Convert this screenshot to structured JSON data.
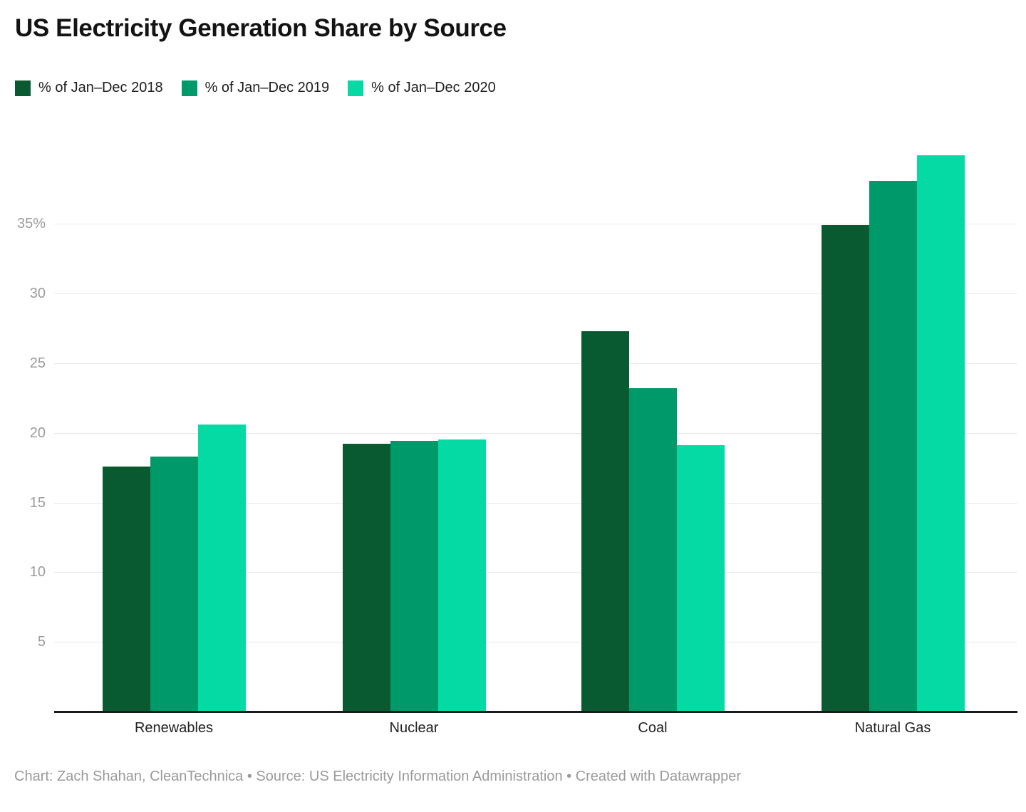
{
  "title": "US Electricity Generation Share by Source",
  "legend": [
    {
      "label": "% of Jan–Dec 2018",
      "color": "#095a31"
    },
    {
      "label": "% of Jan–Dec 2019",
      "color": "#009a6a"
    },
    {
      "label": "% of Jan–Dec 2020",
      "color": "#05daa5"
    }
  ],
  "footer": "Chart: Zach Shahan, CleanTechnica • Source: US Electricity Information Administration • Created with Datawrapper",
  "chart_data": {
    "type": "bar",
    "title": "US Electricity Generation Share by Source",
    "categories": [
      "Renewables",
      "Nuclear",
      "Coal",
      "Natural Gas"
    ],
    "series": [
      {
        "name": "% of Jan–Dec 2018",
        "color": "#095a31",
        "values": [
          17.6,
          19.2,
          27.3,
          34.9
        ]
      },
      {
        "name": "% of Jan–Dec 2019",
        "color": "#009a6a",
        "values": [
          18.3,
          19.4,
          23.2,
          38.1
        ]
      },
      {
        "name": "% of Jan–Dec 2020",
        "color": "#05daa5",
        "values": [
          20.6,
          19.5,
          19.1,
          39.9
        ]
      }
    ],
    "xlabel": "",
    "ylabel": "",
    "unit": "%",
    "ylim": [
      0,
      41
    ],
    "y_ticks": [
      5,
      10,
      15,
      20,
      25,
      30,
      35
    ],
    "y_tick_labels": [
      "5",
      "10",
      "15",
      "20",
      "25",
      "30",
      "35%"
    ],
    "grid": "horizontal",
    "legend_position": "top"
  }
}
